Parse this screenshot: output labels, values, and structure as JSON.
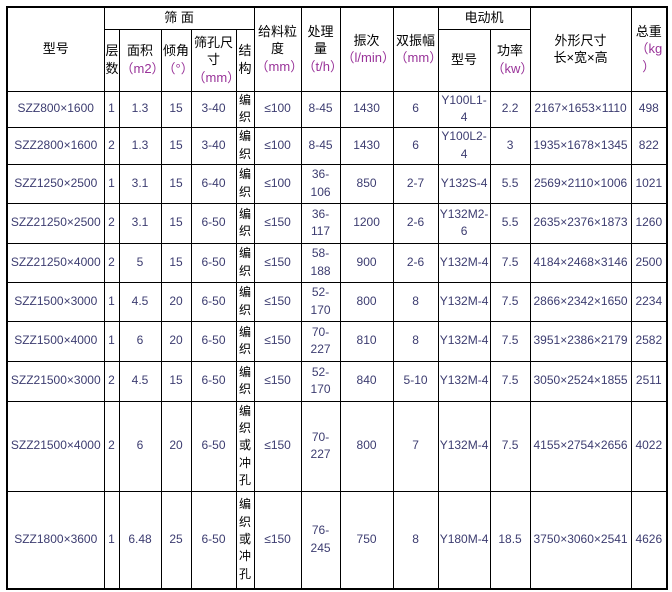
{
  "colors": {
    "background": "#ffffff",
    "border": "#000000",
    "header_text": "#000000",
    "unit_text": "#993399",
    "data_text": "#3c3c70"
  },
  "table": {
    "group_headers": {
      "screen_surface": "筛 面",
      "motor": "电动机"
    },
    "columns": {
      "model": {
        "label": "型号"
      },
      "layers": {
        "label": "层数"
      },
      "area": {
        "label": "面积",
        "unit": "（m2）"
      },
      "incline": {
        "label": "倾角",
        "unit": "（°）"
      },
      "mesh_size": {
        "label": "筛孔尺寸",
        "unit": "（mm）"
      },
      "structure": {
        "label": "结构"
      },
      "feed_size": {
        "label": "给料粒度",
        "unit": "（mm）"
      },
      "capacity": {
        "label": "处理量",
        "unit": "（t/h）"
      },
      "vibration_freq": {
        "label": "振次",
        "unit": "（l/min）"
      },
      "double_amplitude": {
        "label": "双振幅",
        "unit": "（mm）"
      },
      "motor_model": {
        "label": "型号"
      },
      "motor_power": {
        "label": "功率",
        "unit": "（kw）"
      },
      "dimensions": {
        "label": "外形尺寸",
        "sublabel": "长×宽×高"
      },
      "total_weight": {
        "label": "总重",
        "unit": "（kg）"
      }
    },
    "column_keys": [
      "model",
      "layers",
      "area",
      "incline",
      "mesh_size",
      "structure",
      "feed_size",
      "capacity",
      "vibration_freq",
      "double_amplitude",
      "motor_model",
      "motor_power",
      "dimensions",
      "total_weight"
    ],
    "rows": [
      {
        "model": "SZZ800×1600",
        "layers": "1",
        "area": "1.3",
        "incline": "15",
        "mesh_size": "3-40",
        "structure": "编织",
        "feed_size": "≤100",
        "capacity": "8-45",
        "vibration_freq": "1430",
        "double_amplitude": "6",
        "motor_model": "Y100L1-4",
        "motor_power": "2.2",
        "dimensions": "2167×1653×1110",
        "total_weight": "498"
      },
      {
        "model": "SZZ2800×1600",
        "layers": "2",
        "area": "1.3",
        "incline": "15",
        "mesh_size": "3-40",
        "structure": "编织",
        "feed_size": "≤100",
        "capacity": "8-45",
        "vibration_freq": "1430",
        "double_amplitude": "6",
        "motor_model": "Y100L2-4",
        "motor_power": "3",
        "dimensions": "1935×1678×1345",
        "total_weight": "822"
      },
      {
        "model": "SZZ1250×2500",
        "layers": "1",
        "area": "3.1",
        "incline": "15",
        "mesh_size": "6-40",
        "structure": "编织",
        "feed_size": "≤100",
        "capacity": "36-106",
        "vibration_freq": "850",
        "double_amplitude": "2-7",
        "motor_model": "Y132S-4",
        "motor_power": "5.5",
        "dimensions": "2569×2110×1006",
        "total_weight": "1021"
      },
      {
        "model": "SZZ21250×2500",
        "layers": "2",
        "area": "3.1",
        "incline": "15",
        "mesh_size": "6-50",
        "structure": "编织",
        "feed_size": "≤150",
        "capacity": "36-117",
        "vibration_freq": "1200",
        "double_amplitude": "2-6",
        "motor_model": "Y132M2-6",
        "motor_power": "5.5",
        "dimensions": "2635×2376×1873",
        "total_weight": "1260"
      },
      {
        "model": "SZZ21250×4000",
        "layers": "2",
        "area": "5",
        "incline": "15",
        "mesh_size": "6-50",
        "structure": "编织",
        "feed_size": "≤150",
        "capacity": "58-188",
        "vibration_freq": "900",
        "double_amplitude": "2-6",
        "motor_model": "Y132M-4",
        "motor_power": "7.5",
        "dimensions": "4184×2468×3146",
        "total_weight": "2500"
      },
      {
        "model": "SZZ1500×3000",
        "layers": "1",
        "area": "4.5",
        "incline": "20",
        "mesh_size": "6-50",
        "structure": "编织",
        "feed_size": "≤150",
        "capacity": "52-170",
        "vibration_freq": "800",
        "double_amplitude": "8",
        "motor_model": "Y132M-4",
        "motor_power": "7.5",
        "dimensions": "2866×2342×1650",
        "total_weight": "2234"
      },
      {
        "model": "SZZ1500×4000",
        "layers": "1",
        "area": "6",
        "incline": "20",
        "mesh_size": "6-50",
        "structure": "编织",
        "feed_size": "≤150",
        "capacity": "70-227",
        "vibration_freq": "810",
        "double_amplitude": "8",
        "motor_model": "Y132M-4",
        "motor_power": "7.5",
        "dimensions": "3951×2386×2179",
        "total_weight": "2582"
      },
      {
        "model": "SZZ21500×3000",
        "layers": "2",
        "area": "4.5",
        "incline": "15",
        "mesh_size": "6-50",
        "structure": "编织",
        "feed_size": "≤150",
        "capacity": "52-170",
        "vibration_freq": "840",
        "double_amplitude": "5-10",
        "motor_model": "Y132M-4",
        "motor_power": "7.5",
        "dimensions": "3050×2524×1855",
        "total_weight": "2511"
      },
      {
        "model": "SZZ21500×4000",
        "layers": "2",
        "area": "6",
        "incline": "20",
        "mesh_size": "6-50",
        "structure": "编织或冲孔",
        "feed_size": "≤150",
        "capacity": "70-227",
        "vibration_freq": "800",
        "double_amplitude": "7",
        "motor_model": "Y132M-4",
        "motor_power": "7.5",
        "dimensions": "4155×2754×2656",
        "total_weight": "4022"
      },
      {
        "model": "SZZ1800×3600",
        "layers": "1",
        "area": "6.48",
        "incline": "25",
        "mesh_size": "6-50",
        "structure": "编织或冲孔",
        "feed_size": "≤150",
        "capacity": "76-245",
        "vibration_freq": "750",
        "double_amplitude": "8",
        "motor_model": "Y180M-4",
        "motor_power": "18.5",
        "dimensions": "3750×3060×2541",
        "total_weight": "4626"
      }
    ]
  }
}
